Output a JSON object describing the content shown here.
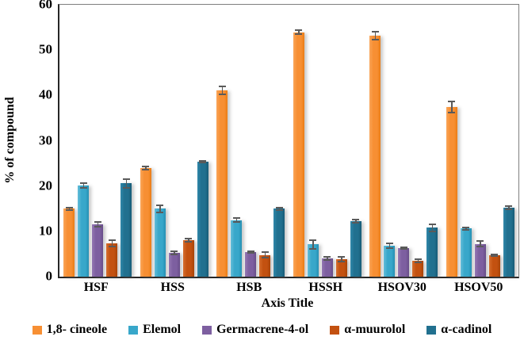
{
  "figure": {
    "y_axis_title": "% of compound",
    "x_axis_title": "Axis Title"
  },
  "chart_data": {
    "type": "bar",
    "title": "",
    "xlabel": "Axis Title",
    "ylabel": "% of compound",
    "ylim": [
      0,
      60
    ],
    "yticks": [
      0,
      10,
      20,
      30,
      40,
      50,
      60
    ],
    "grid": false,
    "legend_position": "bottom",
    "error_bars": true,
    "categories": [
      "HSF",
      "HSS",
      "HSB",
      "HSSH",
      "HSOV30",
      "HSOV50"
    ],
    "series": [
      {
        "name": "1,8- cineole",
        "color": "#F78F33",
        "color_light": "#FAA558",
        "color_dark": "#EA7D16",
        "values": [
          15.0,
          24.0,
          41.1,
          53.9,
          53.2,
          37.4
        ],
        "errors": [
          0.4,
          0.5,
          1.1,
          0.6,
          1.1,
          1.4
        ]
      },
      {
        "name": "Elemol",
        "color": "#38A7CA",
        "color_light": "#64BDD9",
        "color_dark": "#2590B3",
        "values": [
          20.2,
          15.0,
          12.5,
          7.1,
          6.8,
          10.6
        ],
        "errors": [
          0.7,
          1.0,
          0.6,
          1.2,
          0.7,
          0.5
        ]
      },
      {
        "name": "Germacrene-4-ol",
        "color": "#7D5FA0",
        "color_light": "#9478B3",
        "color_dark": "#684D89",
        "values": [
          11.5,
          5.2,
          5.4,
          4.0,
          6.3,
          7.2
        ],
        "errors": [
          0.7,
          0.5,
          0.4,
          0.5,
          0.4,
          0.8
        ]
      },
      {
        "name": "α-muurolol",
        "color": "#C35110",
        "color_light": "#D66E2E",
        "color_dark": "#A84408",
        "values": [
          7.4,
          8.0,
          4.8,
          3.8,
          3.5,
          4.7
        ],
        "errors": [
          0.9,
          0.5,
          0.8,
          0.7,
          0.5,
          0.3
        ]
      },
      {
        "name": "α-cadinol",
        "color": "#21708F",
        "color_light": "#2F87A9",
        "color_dark": "#185C77",
        "values": [
          20.6,
          25.4,
          15.0,
          12.3,
          10.8,
          15.2
        ],
        "errors": [
          1.1,
          0.4,
          0.4,
          0.5,
          1.0,
          0.5
        ]
      }
    ]
  }
}
